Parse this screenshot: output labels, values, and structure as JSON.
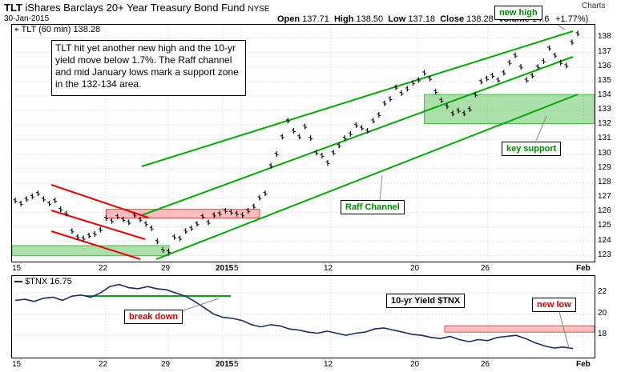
{
  "header": {
    "symbol": "TLT",
    "name": "iShares Barclays 20+ Year Treasury Bond Fund",
    "exchange": "NYSE",
    "date": "30-Jan-2015",
    "open_label": "Open",
    "open": "137.71",
    "high_label": "High",
    "high": "138.50",
    "low_label": "Low",
    "low": "137.18",
    "close_label": "Close",
    "close": "138.28",
    "volume_label": "Volume",
    "volume": "14.6",
    "change": "+1.77%)",
    "watermark": "Charts"
  },
  "price_panel": {
    "legend": "TLT (60 min) 138.28",
    "note": "TLT hit yet another new high and the 10-yr yield move below 1.7%. The Raff channel and mid January lows mark a support zone in the 132-134 area.",
    "callouts": {
      "new_high": "new high",
      "key_support": "key support",
      "raff_channel": "Raff Channel"
    }
  },
  "yield_panel": {
    "legend": "$TNX 16.75",
    "title": "10-yr Yield $TNX",
    "callouts": {
      "break_down": "break down",
      "new_low": "new low"
    }
  },
  "colors": {
    "price_line": "#000000",
    "channel": "#00aa00",
    "downtrend": "#ee0000",
    "support_zone": "#44bb44",
    "resistance_zone": "#ff8888",
    "yield_line": "#1a2a66"
  },
  "x_axis": {
    "ticks": [
      "15",
      "22",
      "29",
      "2015",
      "5",
      "12",
      "20",
      "26",
      "Feb"
    ],
    "bold_ticks": [
      "2015",
      "Feb"
    ]
  },
  "chart_data": [
    {
      "type": "line",
      "series": [
        {
          "values": [
            126.8,
            126.6,
            126.9,
            127.1,
            127.3,
            126.9,
            126.6,
            126.8,
            126.2,
            125.9,
            124.7,
            124.3,
            124.2,
            124.4,
            124.5,
            124.8,
            125.6,
            125.4,
            125.7,
            125.5,
            125.3,
            125.8,
            125.5,
            125.2,
            124.9,
            124.0,
            123.4,
            123.3,
            124.3,
            124.2,
            124.7,
            124.9,
            125.2,
            125.7,
            125.3,
            125.8,
            125.9,
            126.1,
            126.0,
            125.9,
            125.8,
            126.1,
            126.4,
            127.0,
            127.3,
            129.2,
            130.0,
            131.2,
            132.3,
            131.6,
            131.2,
            131.9,
            131.1,
            130.1,
            129.9,
            129.4,
            130.1,
            130.6,
            131.1,
            131.4,
            132.0,
            131.8,
            131.6,
            132.3,
            132.7,
            133.5,
            133.8,
            134.6,
            134.2,
            134.5,
            134.9,
            135.1,
            135.6,
            135.2,
            134.3,
            133.7,
            133.3,
            132.8,
            133.0,
            132.8,
            133.1,
            134.1,
            135.0,
            135.2,
            135.4,
            135.1,
            135.6,
            136.3,
            136.8,
            136.0,
            135.1,
            135.4,
            136.0,
            136.4,
            137.3,
            136.8,
            136.3,
            136.1,
            137.7,
            138.3
          ]
        }
      ],
      "yticks": [
        123,
        124,
        125,
        126,
        127,
        128,
        129,
        130,
        131,
        132,
        133,
        134,
        135,
        136,
        137,
        138
      ],
      "ylim": [
        122.6,
        138.9
      ],
      "support_zone": [
        132.1,
        134.1
      ],
      "resistance_zone": [
        125.6,
        126.2
      ]
    },
    {
      "type": "line",
      "series": [
        {
          "values": [
            21.3,
            21.4,
            21.2,
            21.5,
            21.6,
            21.3,
            21.7,
            21.8,
            21.6,
            22.0,
            22.6,
            22.8,
            22.5,
            22.4,
            22.6,
            22.4,
            22.3,
            22.0,
            21.7,
            21.2,
            20.6,
            20.0,
            19.7,
            19.6,
            19.4,
            19.0,
            18.8,
            19.0,
            18.9,
            18.6,
            18.5,
            18.3,
            18.2,
            18.4,
            18.2,
            18.0,
            18.2,
            18.3,
            18.6,
            18.7,
            18.5,
            18.3,
            18.1,
            18.0,
            17.8,
            17.7,
            17.9,
            17.6,
            17.4,
            17.6,
            17.5,
            17.8,
            17.9,
            18.0,
            17.7,
            17.3,
            17.0,
            16.8,
            16.9,
            16.75
          ]
        }
      ],
      "yticks": [
        18,
        20,
        22
      ],
      "ylim": [
        15.9,
        23.6
      ],
      "resistance_zone": [
        18.3,
        18.9
      ]
    }
  ]
}
